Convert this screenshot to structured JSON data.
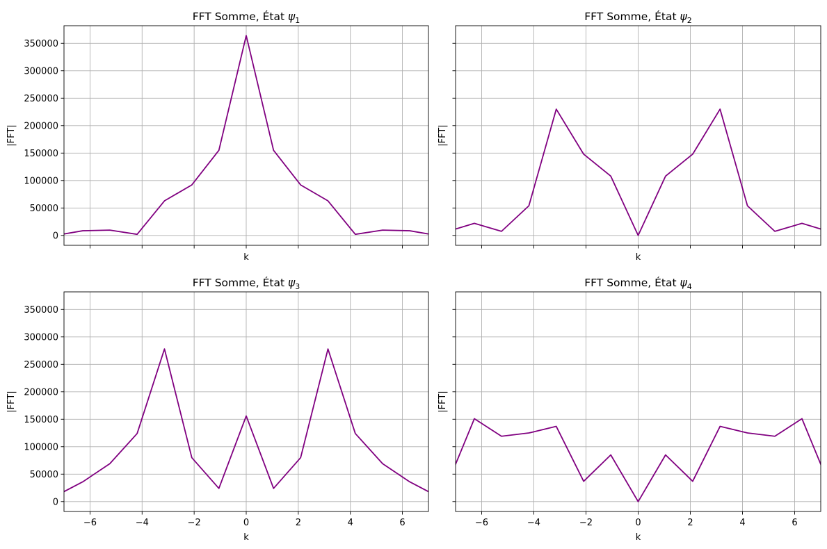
{
  "figure": {
    "title_prefix": "FFT Somme, État ",
    "title_symbol": "ψ",
    "line_color": "#800080",
    "grid_color": "#b0b0b0"
  },
  "chart_data": [
    {
      "type": "line",
      "title": "FFT Somme, État ψ1",
      "subscript": "1",
      "xlabel": "k",
      "ylabel": "|FFT|",
      "xlim": [
        -7,
        7
      ],
      "ylim": [
        -18000,
        382000
      ],
      "xticks": [
        -6,
        -4,
        -2,
        0,
        2,
        4,
        6
      ],
      "yticks": [
        0,
        50000,
        100000,
        150000,
        200000,
        250000,
        300000,
        350000
      ],
      "show_xticklabels": false,
      "show_yticklabels": true,
      "grid": true,
      "x": [
        -7.33,
        -6.28,
        -5.24,
        -4.19,
        -3.14,
        -2.09,
        -1.05,
        0,
        1.05,
        2.09,
        3.14,
        4.19,
        5.24,
        6.28,
        7.33
      ],
      "values": [
        0,
        8500,
        9700,
        2000,
        63000,
        92000,
        155000,
        364000,
        155000,
        92000,
        63000,
        2000,
        9700,
        8500,
        0
      ]
    },
    {
      "type": "line",
      "title": "FFT Somme, État ψ2",
      "subscript": "2",
      "xlabel": "k",
      "ylabel": "|FFT|",
      "xlim": [
        -7,
        7
      ],
      "ylim": [
        -18000,
        382000
      ],
      "xticks": [
        -6,
        -4,
        -2,
        0,
        2,
        4,
        6
      ],
      "yticks": [
        0,
        50000,
        100000,
        150000,
        200000,
        250000,
        300000,
        350000
      ],
      "show_xticklabels": false,
      "show_yticklabels": false,
      "grid": true,
      "x": [
        -7.33,
        -6.28,
        -5.24,
        -4.19,
        -3.14,
        -2.09,
        -1.05,
        0,
        1.05,
        2.09,
        3.14,
        4.19,
        5.24,
        6.28,
        7.33
      ],
      "values": [
        7000,
        22000,
        7500,
        54000,
        230000,
        148000,
        108000,
        0,
        108000,
        148000,
        230000,
        54000,
        7500,
        22000,
        7000
      ]
    },
    {
      "type": "line",
      "title": "FFT Somme, État ψ3",
      "subscript": "3",
      "xlabel": "k",
      "ylabel": "|FFT|",
      "xlim": [
        -7,
        7
      ],
      "ylim": [
        -18000,
        382000
      ],
      "xticks": [
        -6,
        -4,
        -2,
        0,
        2,
        4,
        6
      ],
      "yticks": [
        0,
        50000,
        100000,
        150000,
        200000,
        250000,
        300000,
        350000
      ],
      "show_xticklabels": true,
      "show_yticklabels": true,
      "grid": true,
      "x": [
        -7.33,
        -6.28,
        -5.24,
        -4.19,
        -3.14,
        -2.09,
        -1.05,
        0,
        1.05,
        2.09,
        3.14,
        4.19,
        5.24,
        6.28,
        7.33
      ],
      "values": [
        10000,
        36000,
        69000,
        124000,
        278000,
        80000,
        24000,
        156000,
        24000,
        80000,
        278000,
        124000,
        69000,
        36000,
        10000
      ]
    },
    {
      "type": "line",
      "title": "FFT Somme, État ψ4",
      "subscript": "4",
      "xlabel": "k",
      "ylabel": "|FFT|",
      "xlim": [
        -7,
        7
      ],
      "ylim": [
        -18000,
        382000
      ],
      "xticks": [
        -6,
        -4,
        -2,
        0,
        2,
        4,
        6
      ],
      "yticks": [
        0,
        50000,
        100000,
        150000,
        200000,
        250000,
        300000,
        350000
      ],
      "show_xticklabels": true,
      "show_yticklabels": false,
      "grid": true,
      "x": [
        -7.33,
        -6.28,
        -5.24,
        -4.19,
        -3.14,
        -2.09,
        -1.05,
        0,
        1.05,
        2.09,
        3.14,
        4.19,
        5.24,
        6.28,
        7.33
      ],
      "values": [
        30000,
        151000,
        119000,
        125000,
        137000,
        37000,
        85000,
        0,
        85000,
        37000,
        137000,
        125000,
        119000,
        151000,
        30000
      ]
    }
  ]
}
